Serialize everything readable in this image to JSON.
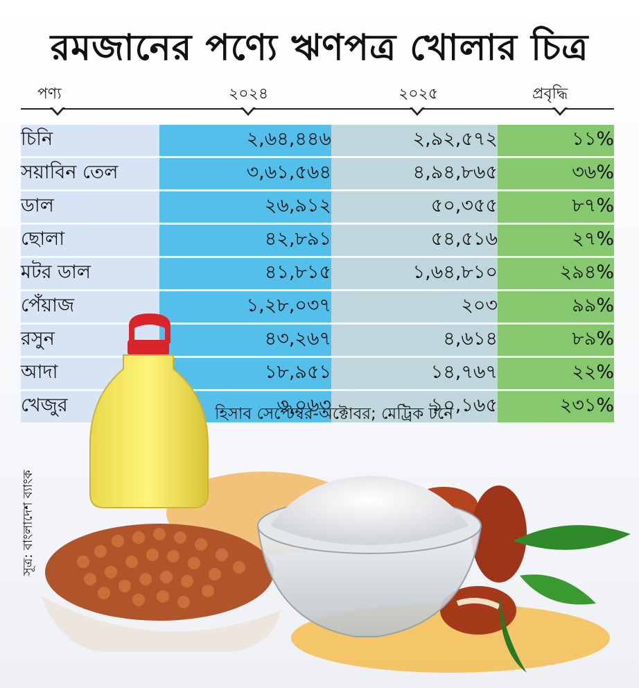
{
  "title": "রমজানের পণ্যে ঋণপত্র খোলার চিত্র",
  "columns": {
    "product": "পণ্য",
    "y2024": "২০২৪",
    "y2025": "২০২৫",
    "growth": "প্রবৃদ্ধি"
  },
  "rows": [
    {
      "name": "চিনি",
      "y2024": "২,৬৪,৪৪৬",
      "y2025": "২,৯২,৫৭২",
      "growth": "১১%"
    },
    {
      "name": "সয়াবিন তেল",
      "y2024": "৩,৬১,৫৬৪",
      "y2025": "৪,৯৪,৮৬৫",
      "growth": "৩৬%"
    },
    {
      "name": "ডাল",
      "y2024": "২৬,৯১২",
      "y2025": "৫০,৩৫৫",
      "growth": "৮৭%"
    },
    {
      "name": "ছোলা",
      "y2024": "৪২,৮৯১",
      "y2025": "৫৪,৫১৬",
      "growth": "২৭%"
    },
    {
      "name": "মটর ডাল",
      "y2024": "৪১,৮১৫",
      "y2025": "১,৬৪,৮১০",
      "growth": "২৯৪%"
    },
    {
      "name": "পেঁয়াজ",
      "y2024": "১,২৮,০৩৭",
      "y2025": "২০৩",
      "growth": "৯৯%"
    },
    {
      "name": "রসুন",
      "y2024": "৪৩,২৬৭",
      "y2025": "৪,৬১৪",
      "growth": "৮৯%"
    },
    {
      "name": "আদা",
      "y2024": "১৮,৯৫১",
      "y2025": "১৪,৭৬৭",
      "growth": "২২%"
    },
    {
      "name": "খেজুর",
      "y2024": "৩,০৬৩",
      "y2025": "১০,১৬৫",
      "growth": "২৩১%"
    }
  ],
  "note": "হিসাব সেপ্টেম্বর-অক্টোবর; মেট্রিক টনে",
  "source": "সূত্র: বাংলাদেশ ব্যাংক",
  "colors": {
    "name_col": "#d6e4f4",
    "y2024_col": "#53bfea",
    "y2025_col": "#bfd7dc",
    "growth_col": "#86c86e"
  },
  "chart_data": {
    "type": "table",
    "title": "রমজানের পণ্যে ঋণপত্র খোলার চিত্র",
    "columns": [
      "পণ্য",
      "২০২৪",
      "২০২৫",
      "প্রবৃদ্ধি"
    ],
    "categories": [
      "চিনি",
      "সয়াবিন তেল",
      "ডাল",
      "ছোলা",
      "মটর ডাল",
      "পেঁয়াজ",
      "রসুন",
      "আদা",
      "খেজুর"
    ],
    "series": [
      {
        "name": "২০২৪",
        "values": [
          264446,
          361564,
          26912,
          42891,
          41815,
          128037,
          43267,
          18951,
          3063
        ]
      },
      {
        "name": "২০২৫",
        "values": [
          292572,
          494865,
          50355,
          54516,
          164810,
          203,
          4614,
          14767,
          10165
        ]
      },
      {
        "name": "প্রবৃদ্ধি",
        "values": [
          11,
          36,
          87,
          27,
          294,
          99,
          89,
          22,
          231
        ]
      }
    ]
  }
}
